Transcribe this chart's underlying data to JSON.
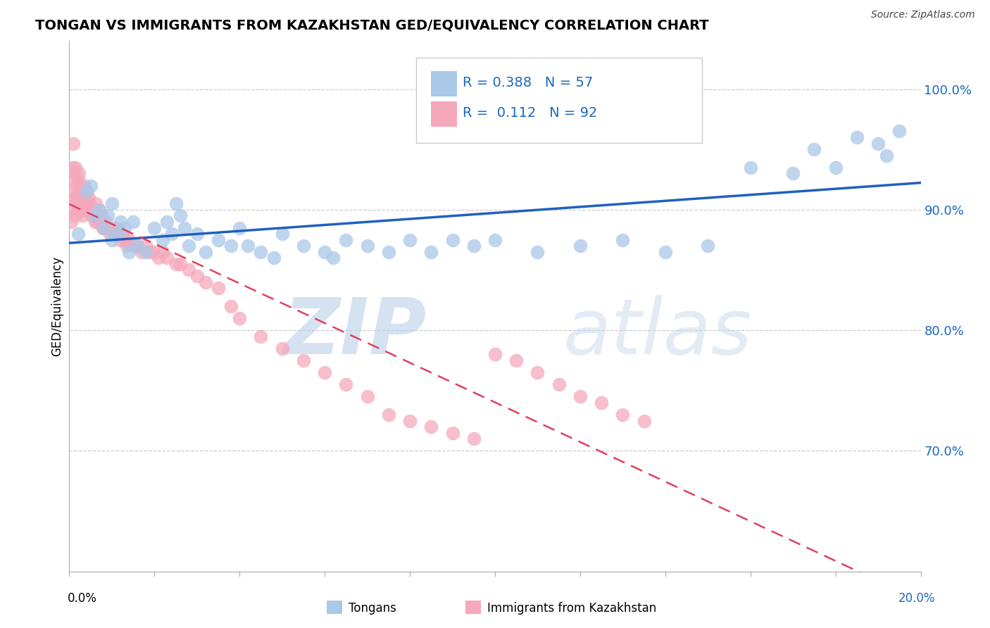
{
  "title": "TONGAN VS IMMIGRANTS FROM KAZAKHSTAN GED/EQUIVALENCY CORRELATION CHART",
  "source": "Source: ZipAtlas.com",
  "ylabel": "GED/Equivalency",
  "xlim": [
    0.0,
    20.0
  ],
  "ylim": [
    60.0,
    104.0
  ],
  "y_ticks": [
    70.0,
    80.0,
    90.0,
    100.0
  ],
  "y_tick_labels": [
    "70.0%",
    "80.0%",
    "90.0%",
    "100.0%"
  ],
  "legend_blue_r": "0.388",
  "legend_blue_n": "57",
  "legend_pink_r": "0.112",
  "legend_pink_n": "92",
  "blue_color": "#aac8e8",
  "pink_color": "#f5a8bc",
  "blue_line_color": "#2060c0",
  "pink_line_color": "#e04060",
  "watermark_zip": "ZIP",
  "watermark_atlas": "atlas",
  "blue_scatter_x": [
    0.2,
    0.4,
    0.5,
    0.6,
    0.7,
    0.8,
    0.9,
    1.0,
    1.0,
    1.1,
    1.2,
    1.3,
    1.4,
    1.5,
    1.6,
    1.8,
    2.0,
    2.2,
    2.3,
    2.4,
    2.5,
    2.6,
    2.7,
    2.8,
    3.0,
    3.2,
    3.5,
    3.8,
    4.0,
    4.2,
    4.5,
    5.0,
    5.5,
    6.0,
    6.5,
    7.0,
    7.5,
    8.0,
    8.5,
    9.0,
    10.0,
    11.0,
    12.0,
    13.0,
    14.0,
    15.0,
    16.0,
    17.0,
    17.5,
    18.0,
    18.5,
    19.0,
    19.2,
    19.5,
    4.8,
    6.2,
    9.5
  ],
  "blue_scatter_y": [
    88.0,
    91.5,
    92.0,
    89.5,
    90.0,
    88.5,
    89.5,
    87.5,
    90.5,
    88.0,
    89.0,
    88.5,
    86.5,
    89.0,
    87.0,
    86.5,
    88.5,
    87.5,
    89.0,
    88.0,
    90.5,
    89.5,
    88.5,
    87.0,
    88.0,
    86.5,
    87.5,
    87.0,
    88.5,
    87.0,
    86.5,
    88.0,
    87.0,
    86.5,
    87.5,
    87.0,
    86.5,
    87.5,
    86.5,
    87.5,
    87.5,
    86.5,
    87.0,
    87.5,
    86.5,
    87.0,
    93.5,
    93.0,
    95.0,
    93.5,
    96.0,
    95.5,
    94.5,
    96.5,
    86.0,
    86.0,
    87.0
  ],
  "pink_scatter_x": [
    0.05,
    0.05,
    0.08,
    0.08,
    0.1,
    0.1,
    0.12,
    0.12,
    0.15,
    0.15,
    0.15,
    0.18,
    0.18,
    0.2,
    0.2,
    0.22,
    0.22,
    0.25,
    0.25,
    0.28,
    0.3,
    0.3,
    0.32,
    0.35,
    0.35,
    0.38,
    0.4,
    0.42,
    0.45,
    0.48,
    0.5,
    0.52,
    0.55,
    0.58,
    0.6,
    0.62,
    0.65,
    0.68,
    0.7,
    0.72,
    0.75,
    0.78,
    0.8,
    0.82,
    0.85,
    0.9,
    0.95,
    1.0,
    1.05,
    1.1,
    1.15,
    1.2,
    1.25,
    1.3,
    1.35,
    1.4,
    1.5,
    1.6,
    1.7,
    1.8,
    1.9,
    2.0,
    2.1,
    2.2,
    2.3,
    2.5,
    2.6,
    2.8,
    3.0,
    3.2,
    3.5,
    3.8,
    4.0,
    4.5,
    5.0,
    5.5,
    6.0,
    6.5,
    7.0,
    7.5,
    8.0,
    8.5,
    9.0,
    9.5,
    10.0,
    10.5,
    11.0,
    11.5,
    12.0,
    12.5,
    13.0,
    13.5
  ],
  "pink_scatter_y": [
    91.5,
    89.0,
    93.5,
    90.0,
    95.5,
    92.5,
    93.0,
    91.0,
    93.5,
    91.0,
    89.5,
    92.0,
    90.5,
    92.5,
    90.0,
    93.0,
    91.5,
    92.0,
    90.0,
    91.5,
    91.0,
    89.5,
    91.5,
    92.0,
    90.0,
    91.0,
    91.5,
    90.5,
    91.0,
    90.5,
    90.0,
    89.5,
    90.0,
    89.5,
    89.0,
    90.5,
    89.0,
    89.5,
    90.0,
    89.0,
    89.5,
    88.5,
    89.0,
    88.5,
    89.0,
    88.5,
    88.0,
    88.5,
    88.0,
    88.5,
    88.0,
    87.5,
    88.0,
    87.5,
    87.0,
    87.5,
    87.0,
    87.0,
    86.5,
    87.0,
    86.5,
    86.5,
    86.0,
    86.5,
    86.0,
    85.5,
    85.5,
    85.0,
    84.5,
    84.0,
    83.5,
    82.0,
    81.0,
    79.5,
    78.5,
    77.5,
    76.5,
    75.5,
    74.5,
    73.0,
    72.5,
    72.0,
    71.5,
    71.0,
    78.0,
    77.5,
    76.5,
    75.5,
    74.5,
    74.0,
    73.0,
    72.5
  ]
}
